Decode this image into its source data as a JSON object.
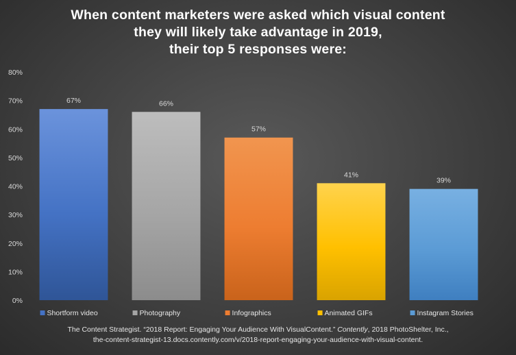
{
  "title_lines": [
    "When content marketers  were asked which visual content",
    "they will likely take advantage  in 2019,",
    "their top 5 responses  were:"
  ],
  "source": {
    "line1_pre": "The Content Strategist. “2018 Report: Engaging Your Audience With VisualContent.” ",
    "line1_italic": "Contently",
    "line1_post": ", 2018 PhotoShelter, Inc.,",
    "line2": "the-content-strategist-13.docs.contently.com/v/2018-report-engaging-your-audience-with-visual-content."
  },
  "chart_data": {
    "type": "bar",
    "title": "When content marketers  were asked which visual content they will likely take advantage  in 2019, their top 5 responses  were:",
    "categories": [
      "Shortform video",
      "Photography",
      "Infographics",
      "Animated GIFs",
      "Instagram Stories"
    ],
    "values": [
      67,
      66,
      57,
      41,
      39
    ],
    "data_labels": [
      "67%",
      "66%",
      "57%",
      "41%",
      "39%"
    ],
    "colors": [
      "#4472c4",
      "#a5a5a5",
      "#ed7d31",
      "#ffc000",
      "#5b9bd5"
    ],
    "colors_light": [
      "#6b93dc",
      "#bdbdbd",
      "#f1954f",
      "#ffd34d",
      "#78b0e2"
    ],
    "colors_dark": [
      "#2f5597",
      "#8c8c8c",
      "#c9631b",
      "#d9a300",
      "#3f7fc0"
    ],
    "xlabel": "",
    "ylabel": "",
    "ylim": [
      0,
      80
    ],
    "yticks": [
      0,
      10,
      20,
      30,
      40,
      50,
      60,
      70,
      80
    ],
    "ytick_labels": [
      "0%",
      "10%",
      "20%",
      "30%",
      "40%",
      "50%",
      "60%",
      "70%",
      "80%"
    ],
    "grid": false,
    "legend_position": "bottom"
  }
}
